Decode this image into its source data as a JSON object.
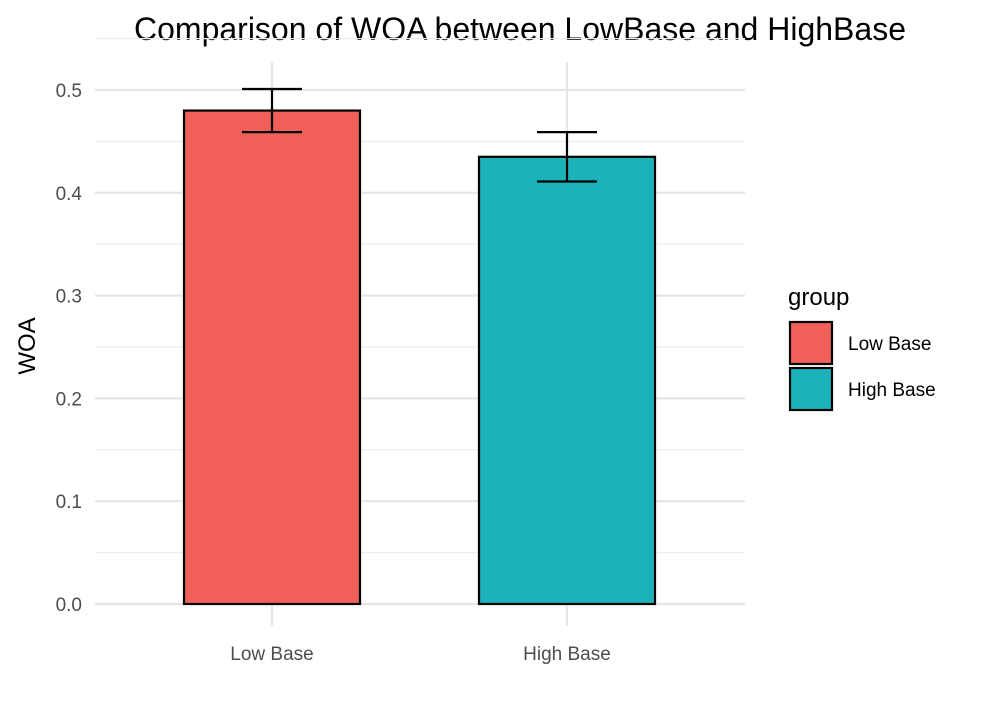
{
  "chart_data": {
    "type": "bar",
    "title": "Comparison of WOA between LowBase and HighBase",
    "xlabel": "",
    "ylabel": "WOA",
    "categories": [
      "Low Base",
      "High Base"
    ],
    "values": [
      0.48,
      0.435
    ],
    "error_low": [
      0.459,
      0.411
    ],
    "error_high": [
      0.501,
      0.459
    ],
    "colors": [
      "#F2605A",
      "#1BB3B9"
    ],
    "ylim": [
      0,
      0.5
    ],
    "yticks": [
      "0.0",
      "0.1",
      "0.2",
      "0.3",
      "0.4",
      "0.5"
    ],
    "grid": true,
    "legend": {
      "title": "group",
      "placement": "right",
      "entries": [
        "Low Base",
        "High Base"
      ]
    }
  }
}
